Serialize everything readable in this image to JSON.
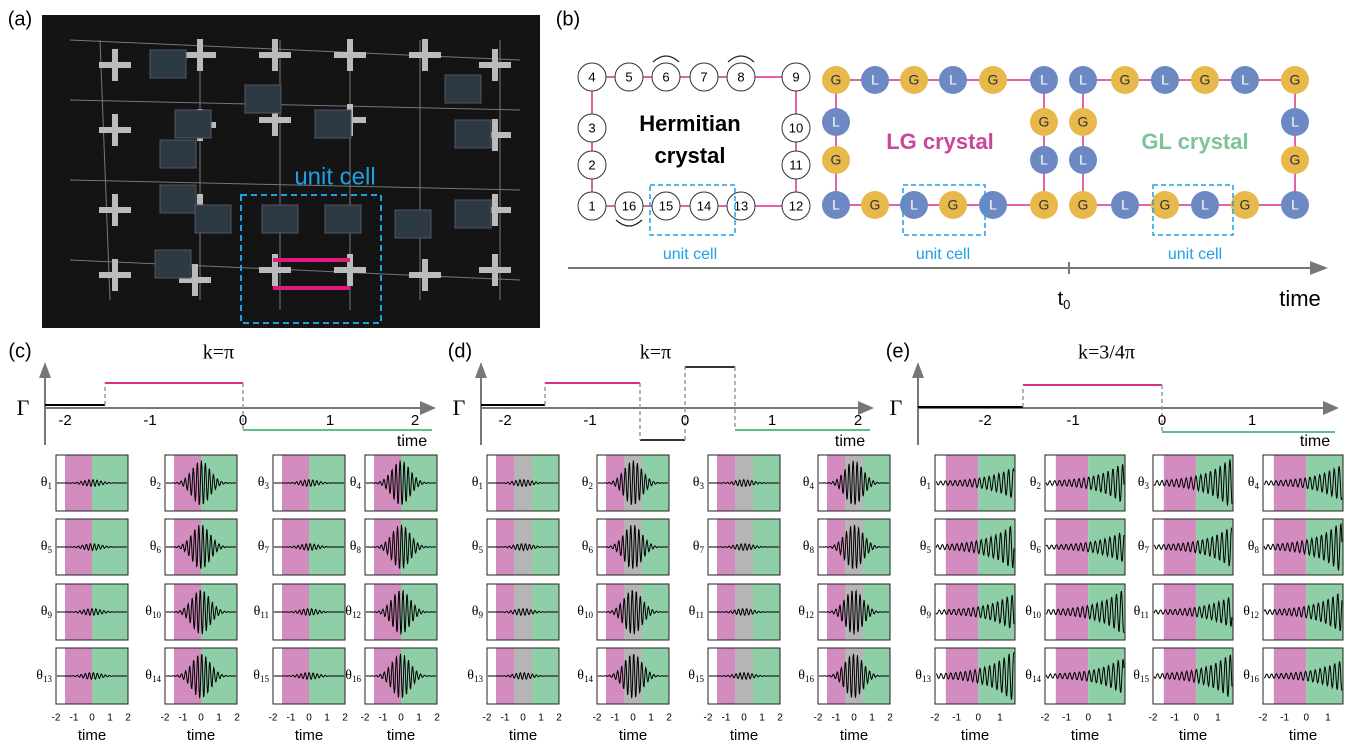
{
  "panel_labels": [
    "(a)",
    "(b)",
    "(c)",
    "(d)",
    "(e)"
  ],
  "a": {
    "label": "unit cell"
  },
  "b": {
    "hermitian_nodes": [
      "1",
      "2",
      "3",
      "4",
      "5",
      "6",
      "7",
      "8",
      "9",
      "10",
      "11",
      "12",
      "13",
      "14",
      "15",
      "16"
    ],
    "hermitian_title": [
      "Hermitian",
      "crystal"
    ],
    "lg_title": "LG crystal",
    "gl_title": "GL crystal",
    "unit_cell": [
      "unit cell",
      "unit cell",
      "unit cell"
    ],
    "lg_nodes": [
      "G",
      "L",
      "G",
      "L",
      "G",
      "L",
      "G",
      "L",
      "L",
      "G",
      "L",
      "G",
      "L",
      "G",
      "L",
      "G"
    ],
    "gl_nodes": [
      "L",
      "G",
      "L",
      "G",
      "L",
      "G",
      "L",
      "G",
      "G",
      "L",
      "G",
      "L",
      "G",
      "L",
      "G",
      "L"
    ],
    "t0": {
      "t": "t",
      "sub": "0"
    },
    "time": "time"
  },
  "c": {
    "title": "k=π",
    "y_label": "Γ",
    "ticks": [
      "-2",
      "-1",
      "0",
      "1",
      "2"
    ],
    "x_label": "time",
    "theta": "θ",
    "plots": [
      "1",
      "2",
      "3",
      "4",
      "5",
      "6",
      "7",
      "8",
      "9",
      "10",
      "11",
      "12",
      "13",
      "14",
      "15",
      "16"
    ],
    "plot_ticks": [
      "-2",
      "-1",
      "0",
      "1",
      "2"
    ],
    "plot_x_label": "time"
  },
  "d": {
    "title": "k=π",
    "y_label": "Γ",
    "ticks": [
      "-2",
      "-1",
      "0",
      "1",
      "2"
    ],
    "x_label": "time",
    "theta": "θ",
    "plots": [
      "1",
      "2",
      "3",
      "4",
      "5",
      "6",
      "7",
      "8",
      "9",
      "10",
      "11",
      "12",
      "13",
      "14",
      "15",
      "16"
    ],
    "plot_ticks": [
      "-2",
      "-1",
      "0",
      "1",
      "2"
    ],
    "plot_x_label": "time"
  },
  "e": {
    "title": "k=3/4π",
    "y_label": "Γ",
    "ticks": [
      "-2",
      "-1",
      "0",
      "1"
    ],
    "x_label": "time",
    "theta": "θ",
    "plots": [
      "1",
      "2",
      "3",
      "4",
      "5",
      "6",
      "7",
      "8",
      "9",
      "10",
      "11",
      "12",
      "13",
      "14",
      "15",
      "16"
    ],
    "plot_ticks": [
      "-2",
      "-1",
      "0",
      "1"
    ],
    "plot_x_label": "time"
  }
}
